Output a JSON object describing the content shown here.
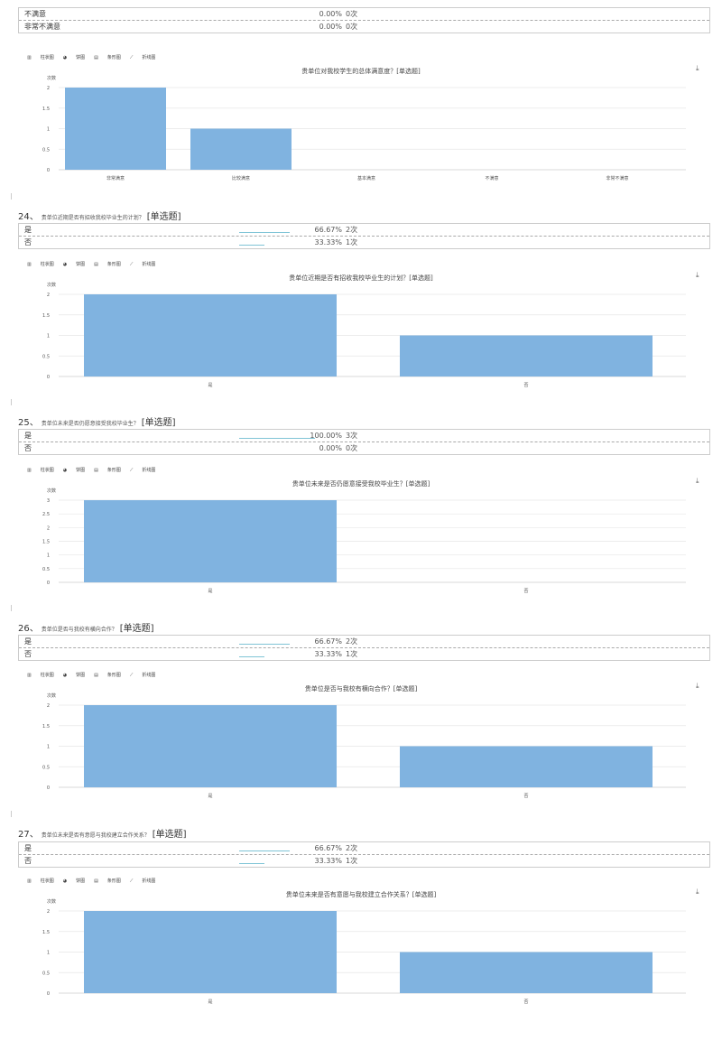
{
  "toolbar": [
    "柱状图",
    "饼图",
    "条形图",
    "折线图"
  ],
  "toolbar_icons": [
    "bar-chart-icon",
    "pie-chart-icon",
    "bar-horizontal-icon",
    "line-chart-icon"
  ],
  "bar_color": "#80b3e0",
  "sections": [
    {
      "number": "",
      "question": "",
      "type": "",
      "rows": [
        {
          "label": "不满意",
          "fraction": 0,
          "percent": "0.00%",
          "count": "0次"
        },
        {
          "label": "非常不满意",
          "fraction": 0,
          "percent": "0.00%",
          "count": "0次"
        }
      ],
      "chart_title": "贵单位对我校学生的总体满意度？[单选题]"
    },
    {
      "number": "24、",
      "question": "贵单位近期是否有招收我校毕业生的计划？",
      "type": "[单选题]",
      "rows": [
        {
          "label": "是",
          "fraction": 0.6667,
          "percent": "66.67%",
          "count": "2次"
        },
        {
          "label": "否",
          "fraction": 0.3333,
          "percent": "33.33%",
          "count": "1次"
        }
      ],
      "chart_title": "贵单位近期是否有招收我校毕业生的计划？[单选题]"
    },
    {
      "number": "25、",
      "question": "贵单位未来是否仍愿意接受我校毕业生？",
      "type": "[单选题]",
      "rows": [
        {
          "label": "是",
          "fraction": 1,
          "percent": "100.00%",
          "count": "3次"
        },
        {
          "label": "否",
          "fraction": 0,
          "percent": "0.00%",
          "count": "0次"
        }
      ],
      "chart_title": "贵单位未来是否仍愿意接受我校毕业生？[单选题]"
    },
    {
      "number": "26、",
      "question": "贵单位是否与我校有横向合作？",
      "type": "[单选题]",
      "rows": [
        {
          "label": "是",
          "fraction": 0.6667,
          "percent": "66.67%",
          "count": "2次"
        },
        {
          "label": "否",
          "fraction": 0.3333,
          "percent": "33.33%",
          "count": "1次"
        }
      ],
      "chart_title": "贵单位是否与我校有横向合作？[单选题]"
    },
    {
      "number": "27、",
      "question": "贵单位未来是否有意愿与我校建立合作关系？",
      "type": "[单选题]",
      "rows": [
        {
          "label": "是",
          "fraction": 0.6667,
          "percent": "66.67%",
          "count": "2次"
        },
        {
          "label": "否",
          "fraction": 0.3333,
          "percent": "33.33%",
          "count": "1次"
        }
      ],
      "chart_title": "贵单位未来是否有意愿与我校建立合作关系？[单选题]"
    }
  ],
  "chart_data": [
    {
      "type": "bar",
      "title": "贵单位对我校学生的总体满意度？[单选题]",
      "ylabel": "次数",
      "categories": [
        "非常满意",
        "比较满意",
        "基本满意",
        "不满意",
        "非常不满意"
      ],
      "values": [
        2,
        1,
        0,
        0,
        0
      ],
      "ylim": [
        0,
        2
      ],
      "yticks": [
        "0",
        "0.5",
        "1",
        "1.5",
        "2"
      ],
      "grid": true
    },
    {
      "type": "bar",
      "title": "贵单位近期是否有招收我校毕业生的计划？[单选题]",
      "ylabel": "次数",
      "categories": [
        "是",
        "否"
      ],
      "values": [
        2,
        1
      ],
      "ylim": [
        0,
        2
      ],
      "yticks": [
        "0",
        "0.5",
        "1",
        "1.5",
        "2"
      ],
      "grid": true
    },
    {
      "type": "bar",
      "title": "贵单位未来是否仍愿意接受我校毕业生？[单选题]",
      "ylabel": "次数",
      "categories": [
        "是",
        "否"
      ],
      "values": [
        3,
        0
      ],
      "ylim": [
        0,
        3
      ],
      "yticks": [
        "0",
        "0.5",
        "1",
        "1.5",
        "2",
        "2.5",
        "3"
      ],
      "grid": true
    },
    {
      "type": "bar",
      "title": "贵单位是否与我校有横向合作？[单选题]",
      "ylabel": "次数",
      "categories": [
        "是",
        "否"
      ],
      "values": [
        2,
        1
      ],
      "ylim": [
        0,
        2
      ],
      "yticks": [
        "0",
        "0.5",
        "1",
        "1.5",
        "2"
      ],
      "grid": true
    },
    {
      "type": "bar",
      "title": "贵单位未来是否有意愿与我校建立合作关系？[单选题]",
      "ylabel": "次数",
      "categories": [
        "是",
        "否"
      ],
      "values": [
        2,
        1
      ],
      "ylim": [
        0,
        2
      ],
      "yticks": [
        "0",
        "0.5",
        "1",
        "1.5",
        "2"
      ],
      "grid": true
    }
  ]
}
